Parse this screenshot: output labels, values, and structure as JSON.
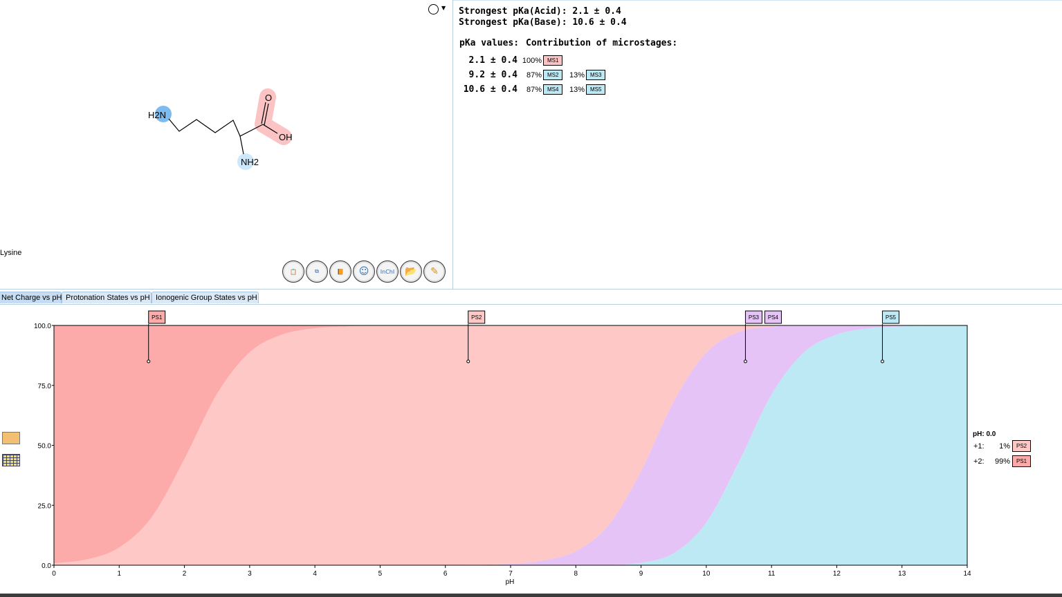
{
  "molecule": {
    "name": "Lysine",
    "atoms": {
      "n_terminal": "H2N",
      "amine": "NH2",
      "oxygen": "O",
      "hydroxyl": "OH"
    }
  },
  "summary": {
    "acid": "Strongest pKa(Acid): 2.1 ± 0.4",
    "base": "Strongest pKa(Base): 10.6 ± 0.4",
    "pka_header": "pKa values:",
    "contrib_header": "Contribution of microstages:"
  },
  "pka_rows": [
    {
      "pka": "2.1 ± 0.4",
      "contribs": [
        {
          "pct": "100%",
          "ms": "MS1",
          "color": "#fdc3c3"
        }
      ]
    },
    {
      "pka": "9.2 ± 0.4",
      "contribs": [
        {
          "pct": "87%",
          "ms": "MS2",
          "color": "#bde9f5"
        },
        {
          "pct": "13%",
          "ms": "MS3",
          "color": "#bde9f5"
        }
      ]
    },
    {
      "pka": "10.6 ± 0.4",
      "contribs": [
        {
          "pct": "87%",
          "ms": "MS4",
          "color": "#bde9f5"
        },
        {
          "pct": "13%",
          "ms": "MS5",
          "color": "#bde9f5"
        }
      ]
    }
  ],
  "toolbar": [
    "copy-icon",
    "copy-as-icon",
    "book-icon",
    "smiley-icon",
    "inchi-icon",
    "open-icon",
    "edit-icon"
  ],
  "toolbar_inchi_label": "InChI",
  "tabs": [
    "Net Charge vs pH",
    "Protonation States vs pH",
    "Ionogenic Group States vs pH"
  ],
  "legend": {
    "title": "pH: 0.0",
    "rows": [
      {
        "charge": "+1:",
        "pct": "1%",
        "ps": "PS2",
        "color": "#fdc8c5"
      },
      {
        "charge": "+2:",
        "pct": "99%",
        "ps": "PS1",
        "color": "#fdaaaa"
      }
    ]
  },
  "chart_data": {
    "type": "area",
    "stacked": true,
    "xlabel": "pH",
    "ylabel": "",
    "xlim": [
      0,
      14
    ],
    "ylim": [
      0,
      100
    ],
    "xticks": [
      "0",
      "1",
      "2",
      "3",
      "4",
      "5",
      "6",
      "7",
      "8",
      "9",
      "10",
      "11",
      "12",
      "13",
      "14"
    ],
    "yticks": [
      "100.0",
      "75.0",
      "50.0",
      "25.0",
      "0.0"
    ],
    "x": [
      0,
      0.5,
      1,
      1.5,
      2,
      2.5,
      3,
      3.5,
      4,
      4.5,
      5,
      5.5,
      6,
      6.5,
      7,
      7.5,
      8,
      8.5,
      9,
      9.5,
      10,
      10.5,
      11,
      11.5,
      12,
      12.5,
      13,
      13.5,
      14
    ],
    "series": [
      {
        "name": "PS5",
        "color": "#bde9f5",
        "values": [
          0,
          0,
          0,
          0,
          0,
          0,
          0,
          0,
          0,
          0,
          0,
          0,
          0,
          0,
          0,
          0,
          0,
          0.1,
          1.0,
          5.0,
          17.8,
          43.1,
          71.2,
          88.8,
          96.2,
          98.8,
          99.6,
          99.9,
          100
        ]
      },
      {
        "name": "PS3/PS4",
        "color": "#e5c3f7",
        "values": [
          0,
          0,
          0,
          0,
          0,
          0,
          0,
          0,
          0,
          0,
          0,
          0,
          0.1,
          0.2,
          0.6,
          2.0,
          5.9,
          16.6,
          38.3,
          63.3,
          70.9,
          54.2,
          28.3,
          11.2,
          3.8,
          1.2,
          0.4,
          0.1,
          0
        ]
      },
      {
        "name": "PS2",
        "color": "#fdc8c5",
        "values": [
          0.8,
          2.4,
          7.4,
          20.1,
          44.3,
          71.5,
          88.8,
          96.2,
          98.8,
          99.6,
          99.9,
          100,
          99.9,
          99.8,
          99.4,
          98.0,
          94.1,
          83.3,
          60.7,
          31.7,
          11.3,
          2.7,
          0.5,
          0,
          0,
          0,
          0,
          0,
          0
        ]
      },
      {
        "name": "PS1",
        "color": "#fdaaaa",
        "values": [
          99.2,
          97.6,
          92.6,
          79.9,
          55.7,
          28.5,
          11.2,
          3.8,
          1.2,
          0.4,
          0.1,
          0,
          0,
          0,
          0,
          0,
          0,
          0,
          0,
          0,
          0,
          0,
          0,
          0,
          0,
          0,
          0,
          0,
          0
        ]
      }
    ],
    "markers": [
      {
        "label": "PS1",
        "ph": 1.45,
        "color": "#fdaaaa"
      },
      {
        "label": "PS2",
        "ph": 6.35,
        "color": "#fdc8c5"
      },
      {
        "label": "PS3",
        "ph": 10.6,
        "color": "#e5c3f7"
      },
      {
        "label": "PS4",
        "ph": 10.6,
        "color": "#e5c3f7"
      },
      {
        "label": "PS5",
        "ph": 12.7,
        "color": "#bde9f5"
      }
    ]
  }
}
